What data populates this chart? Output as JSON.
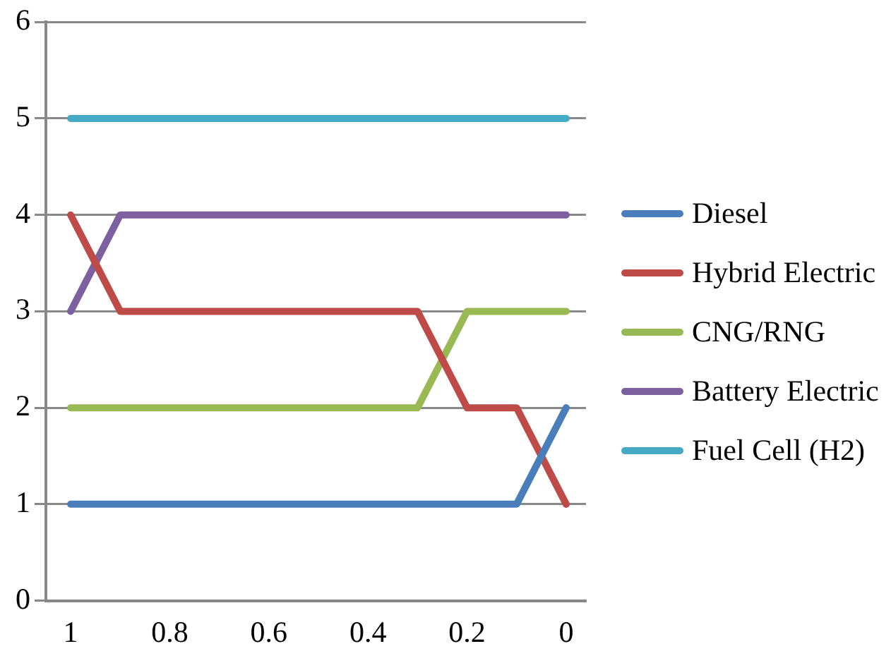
{
  "chart_data": {
    "type": "line",
    "x": [
      1,
      0.9,
      0.8,
      0.7,
      0.6,
      0.5,
      0.4,
      0.3,
      0.2,
      0.1,
      0
    ],
    "xlim": [
      1.05,
      -0.04
    ],
    "xticks": [
      1,
      0.8,
      0.6,
      0.4,
      0.2,
      0
    ],
    "ylim": [
      0,
      6
    ],
    "yticks": [
      0,
      1,
      2,
      3,
      4,
      5,
      6
    ],
    "grid": "y",
    "legend": "right",
    "marker": "none",
    "series": [
      {
        "name": "Diesel",
        "color": "#4a7ebb",
        "values": [
          1,
          1,
          1,
          1,
          1,
          1,
          1,
          1,
          1,
          1,
          2
        ]
      },
      {
        "name": "Hybrid Electric",
        "color": "#be4b48",
        "values": [
          4,
          3,
          3,
          3,
          3,
          3,
          3,
          3,
          2,
          2,
          1
        ]
      },
      {
        "name": "CNG/RNG",
        "color": "#98b954",
        "values": [
          2,
          2,
          2,
          2,
          2,
          2,
          2,
          2,
          3,
          3,
          3
        ]
      },
      {
        "name": "Battery Electric",
        "color": "#7d60a0",
        "values": [
          3,
          4,
          4,
          4,
          4,
          4,
          4,
          4,
          4,
          4,
          4
        ]
      },
      {
        "name": "Fuel Cell (H2)",
        "color": "#46aac5",
        "values": [
          5,
          5,
          5,
          5,
          5,
          5,
          5,
          5,
          5,
          5,
          5
        ]
      }
    ]
  }
}
